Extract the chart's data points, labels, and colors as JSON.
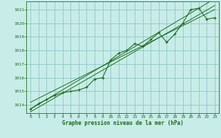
{
  "hours": [
    0,
    1,
    2,
    3,
    4,
    5,
    6,
    7,
    8,
    9,
    10,
    11,
    12,
    13,
    14,
    15,
    16,
    17,
    18,
    19,
    20,
    21,
    22,
    23
  ],
  "pressure": [
    1013.7,
    1014.1,
    1014.4,
    1014.7,
    1014.9,
    1015.0,
    1015.1,
    1015.3,
    1015.9,
    1016.0,
    1017.3,
    1017.8,
    1018.0,
    1018.5,
    1018.3,
    1018.8,
    1019.3,
    1018.6,
    1019.2,
    1020.0,
    1021.0,
    1021.1,
    1020.3,
    1020.4
  ],
  "line_color": "#1a6b1a",
  "bg_color": "#c8ece8",
  "grid_color": "#7fbfbf",
  "text_color": "#1a6b1a",
  "xlabel": "Graphe pression niveau de la mer (hPa)",
  "ylim_min": 1013.4,
  "ylim_max": 1021.6,
  "xlim_min": -0.5,
  "xlim_max": 23.5,
  "yticks": [
    1014,
    1015,
    1016,
    1017,
    1018,
    1019,
    1020,
    1021
  ],
  "xticks": [
    0,
    1,
    2,
    3,
    4,
    5,
    6,
    7,
    8,
    9,
    10,
    11,
    12,
    13,
    14,
    15,
    16,
    17,
    18,
    19,
    20,
    21,
    22,
    23
  ],
  "channel_line1": [
    1013.5,
    1021.3
  ],
  "channel_line2": [
    1014.2,
    1021.0
  ],
  "channel_line3": [
    1013.7,
    1021.8
  ]
}
